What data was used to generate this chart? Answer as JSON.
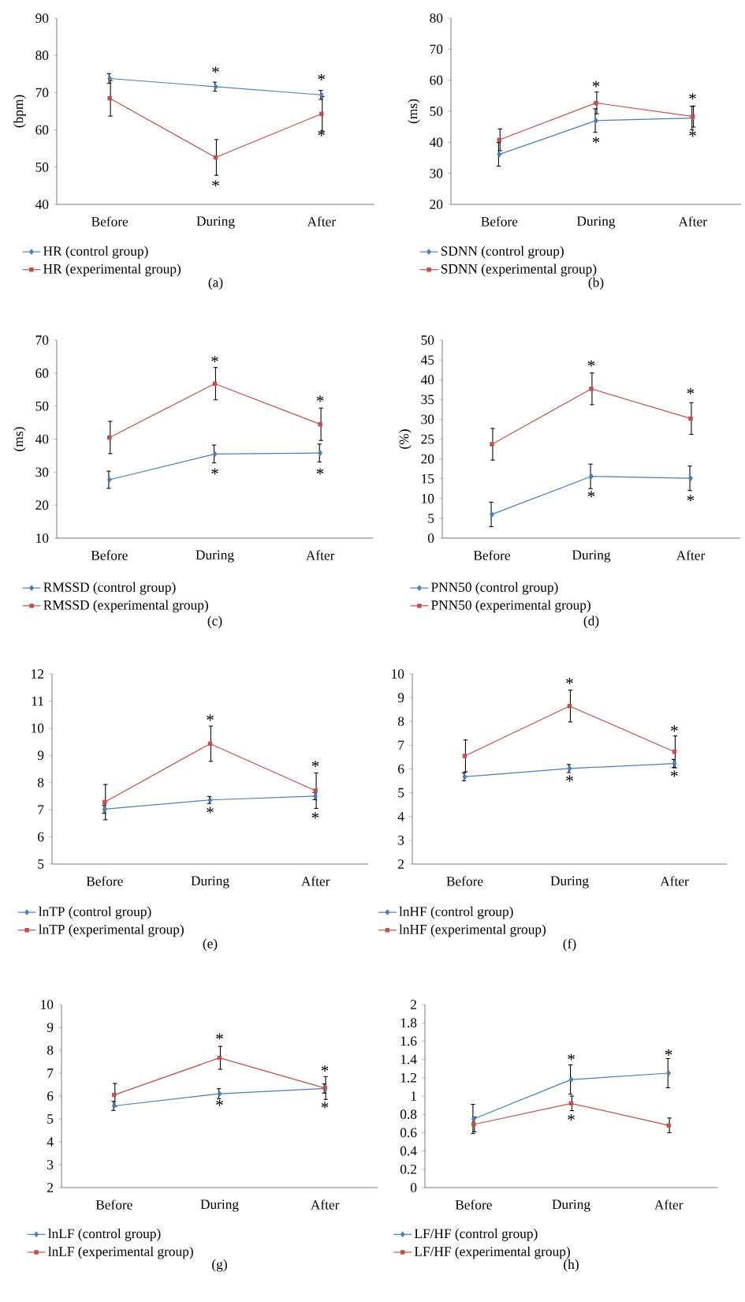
{
  "chart_data": [
    {
      "type": "line",
      "title": "(a)",
      "ylabel": "(bpm)",
      "categories": [
        "Before",
        "During",
        "After"
      ],
      "ylim": [
        40,
        90
      ],
      "yticks": [
        40,
        50,
        60,
        70,
        80,
        90
      ],
      "legend": "bottom",
      "series": [
        {
          "name": "HR (control group)",
          "color": "#4a7ebb",
          "marker": "diamond",
          "values": [
            73.8,
            71.6,
            69.4
          ],
          "errors": [
            1.3,
            1.2,
            1.2
          ]
        },
        {
          "name": "HR (experimental group)",
          "color": "#c0504d",
          "marker": "square",
          "values": [
            68.5,
            52.6,
            64.3
          ],
          "errors": [
            4.8,
            4.8,
            4.6
          ]
        }
      ],
      "annotations": [
        "*",
        "*",
        "*",
        "*"
      ]
    },
    {
      "type": "line",
      "title": "(b)",
      "ylabel": "(ms)",
      "categories": [
        "Before",
        "During",
        "After"
      ],
      "ylim": [
        20,
        80
      ],
      "yticks": [
        20,
        30,
        40,
        50,
        60,
        70,
        80
      ],
      "legend": "bottom",
      "series": [
        {
          "name": "SDNN (control group)",
          "color": "#4a7ebb",
          "marker": "diamond",
          "values": [
            36.1,
            47.0,
            47.8
          ],
          "errors": [
            3.8,
            3.8,
            3.8
          ]
        },
        {
          "name": "SDNN (experimental group)",
          "color": "#c0504d",
          "marker": "square",
          "values": [
            40.8,
            52.7,
            48.3
          ],
          "errors": [
            3.5,
            3.5,
            3.4
          ]
        }
      ],
      "annotations": [
        "*",
        "*",
        "*",
        "*"
      ]
    },
    {
      "type": "line",
      "title": "(c)",
      "ylabel": "(ms)",
      "categories": [
        "Before",
        "During",
        "After"
      ],
      "ylim": [
        10,
        70
      ],
      "yticks": [
        10,
        20,
        30,
        40,
        50,
        60,
        70
      ],
      "legend": "bottom",
      "series": [
        {
          "name": "RMSSD (control group)",
          "color": "#4a7ebb",
          "marker": "diamond",
          "values": [
            27.7,
            35.5,
            35.8
          ],
          "errors": [
            2.6,
            2.7,
            2.7
          ]
        },
        {
          "name": "RMSSD (experimental group)",
          "color": "#c0504d",
          "marker": "square",
          "values": [
            40.5,
            56.8,
            44.5
          ],
          "errors": [
            4.9,
            4.9,
            4.9
          ]
        }
      ],
      "annotations": [
        "*",
        "*",
        "*",
        "*"
      ]
    },
    {
      "type": "line",
      "title": "(d)",
      "ylabel": "(%)",
      "categories": [
        "Before",
        "During",
        "After"
      ],
      "ylim": [
        0,
        50
      ],
      "yticks": [
        0,
        5,
        10,
        15,
        20,
        25,
        30,
        35,
        40,
        45,
        50
      ],
      "legend": "bottom",
      "series": [
        {
          "name": "PNN50 (control group)",
          "color": "#4a7ebb",
          "marker": "diamond",
          "values": [
            6.0,
            15.6,
            15.1
          ],
          "errors": [
            3.1,
            3.1,
            3.1
          ]
        },
        {
          "name": "PNN50 (experimental group)",
          "color": "#c0504d",
          "marker": "square",
          "values": [
            23.7,
            37.7,
            30.2
          ],
          "errors": [
            4.0,
            4.0,
            4.0
          ]
        }
      ],
      "annotations": [
        "*",
        "*",
        "*",
        "*"
      ]
    },
    {
      "type": "line",
      "title": "(e)",
      "categories": [
        "Before",
        "During",
        "After"
      ],
      "ylim": [
        5,
        12
      ],
      "yticks": [
        5,
        6,
        7,
        8,
        9,
        10,
        11,
        12
      ],
      "legend": "bottom",
      "series": [
        {
          "name": "lnTP (control group)",
          "color": "#4a7ebb",
          "marker": "diamond",
          "values": [
            7.02,
            7.36,
            7.5
          ],
          "errors": [
            0.15,
            0.13,
            0.13
          ]
        },
        {
          "name": "lnTP (experimental group)",
          "color": "#c0504d",
          "marker": "square",
          "values": [
            7.28,
            9.43,
            7.7
          ],
          "errors": [
            0.65,
            0.65,
            0.65
          ]
        }
      ],
      "annotations": [
        "*",
        "*",
        "*",
        "*"
      ]
    },
    {
      "type": "line",
      "title": "(f)",
      "categories": [
        "Before",
        "During",
        "After"
      ],
      "ylim": [
        2,
        10
      ],
      "yticks": [
        2,
        3,
        4,
        5,
        6,
        7,
        8,
        9,
        10
      ],
      "legend": "bottom",
      "series": [
        {
          "name": "lnHF (control group)",
          "color": "#4a7ebb",
          "marker": "diamond",
          "values": [
            5.67,
            6.02,
            6.23
          ],
          "errors": [
            0.17,
            0.17,
            0.17
          ]
        },
        {
          "name": "lnHF (experimental group)",
          "color": "#c0504d",
          "marker": "square",
          "values": [
            6.55,
            8.65,
            6.72
          ],
          "errors": [
            0.67,
            0.67,
            0.67
          ]
        }
      ],
      "annotations": [
        "*",
        "*",
        "*",
        "*"
      ]
    },
    {
      "type": "line",
      "title": "(g)",
      "categories": [
        "Before",
        "During",
        "After"
      ],
      "ylim": [
        2,
        10
      ],
      "yticks": [
        2,
        3,
        4,
        5,
        6,
        7,
        8,
        9,
        10
      ],
      "legend": "bottom",
      "series": [
        {
          "name": "lnLF (control group)",
          "color": "#4a7ebb",
          "marker": "diamond",
          "values": [
            5.57,
            6.1,
            6.33
          ],
          "errors": [
            0.2,
            0.22,
            0.2
          ]
        },
        {
          "name": "lnLF (experimental group)",
          "color": "#c0504d",
          "marker": "square",
          "values": [
            6.05,
            7.67,
            6.35
          ],
          "errors": [
            0.5,
            0.5,
            0.5
          ]
        }
      ],
      "annotations": [
        "*",
        "*",
        "*",
        "*"
      ]
    },
    {
      "type": "line",
      "title": "(h)",
      "categories": [
        "Before",
        "During",
        "After"
      ],
      "ylim": [
        0,
        2
      ],
      "yticks": [
        0,
        0.2,
        0.4,
        0.6,
        0.8,
        1,
        1.2,
        1.4,
        1.6,
        1.8,
        2
      ],
      "legend": "bottom",
      "series": [
        {
          "name": "LF/HF (control group)",
          "color": "#4a7ebb",
          "marker": "diamond",
          "values": [
            0.75,
            1.18,
            1.25
          ],
          "errors": [
            0.16,
            0.16,
            0.16
          ]
        },
        {
          "name": "LF/HF (experimental group)",
          "color": "#c0504d",
          "marker": "square",
          "values": [
            0.69,
            0.92,
            0.68
          ],
          "errors": [
            0.08,
            0.08,
            0.08
          ]
        }
      ],
      "annotations": [
        "*",
        "*",
        "*"
      ]
    }
  ]
}
